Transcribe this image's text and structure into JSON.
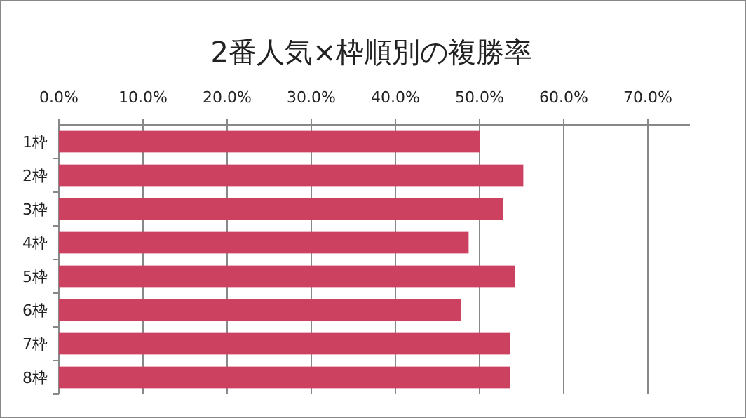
{
  "chart_data": {
    "type": "bar",
    "orientation": "horizontal",
    "title": "2番人気×枠順別の複勝率",
    "categories": [
      "1枠",
      "2枠",
      "3枠",
      "4枠",
      "5枠",
      "6枠",
      "7枠",
      "8枠"
    ],
    "values": [
      50.0,
      55.2,
      52.8,
      48.7,
      54.2,
      47.8,
      53.6,
      53.6
    ],
    "color": "#cc4060",
    "xlim": [
      0,
      75
    ],
    "xticks": [
      {
        "value": 0,
        "label": "0.0%"
      },
      {
        "value": 10,
        "label": "10.0%"
      },
      {
        "value": 20,
        "label": "20.0%"
      },
      {
        "value": 30,
        "label": "30.0%"
      },
      {
        "value": 40,
        "label": "40.0%"
      },
      {
        "value": 50,
        "label": "50.0%"
      },
      {
        "value": 60,
        "label": "60.0%"
      },
      {
        "value": 70,
        "label": "70.0%"
      }
    ],
    "grid": "x"
  }
}
